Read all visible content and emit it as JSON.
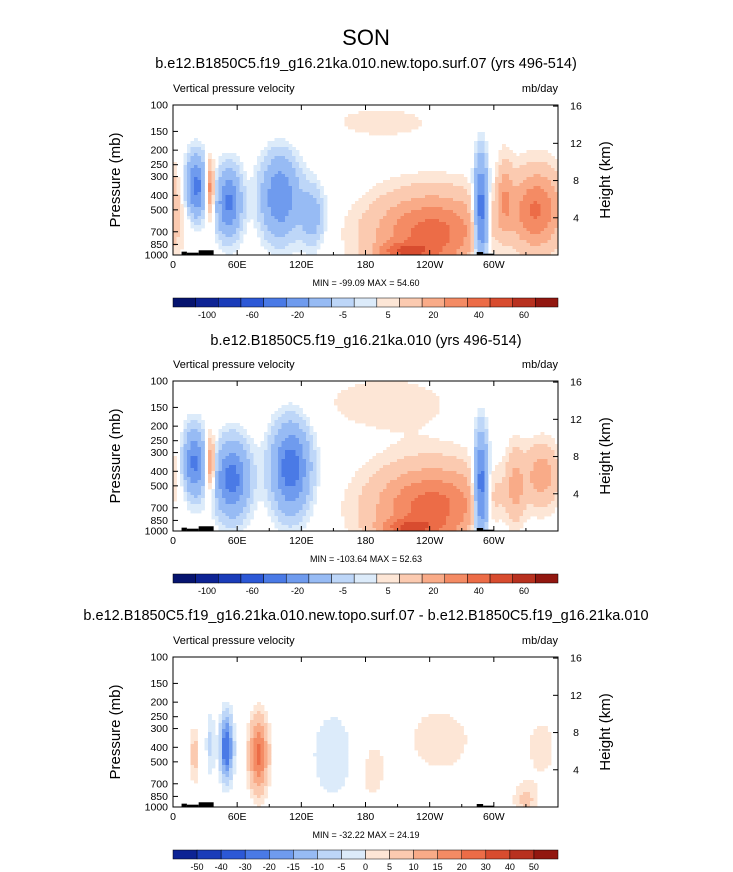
{
  "title": "SON",
  "colors": {
    "pos": [
      "#fde6d6",
      "#fbcab0",
      "#f9ab88",
      "#f48b64",
      "#ec6c47",
      "#d84c2f",
      "#b8311f",
      "#921710"
    ],
    "neg": [
      "#dcebfa",
      "#bdd6f8",
      "#97bbf4",
      "#6f9bee",
      "#4a7ae6",
      "#2c58d6",
      "#1a3cb9",
      "#0d2394",
      "#06146f"
    ],
    "land": "#000000"
  },
  "chart_data": [
    {
      "type": "heatmap",
      "id": "p1",
      "title": "b.e12.B1850C5.f19_g16.21ka.010.new.topo.surf.07 (yrs 496-514)",
      "left_label": "Vertical pressure velocity",
      "right_label": "mb/day",
      "ylabel": "Pressure (mb)",
      "ylabel_right": "Height (km)",
      "yticks": [
        "100",
        "150",
        "200",
        "250",
        "300",
        "400",
        "500",
        "700",
        "850",
        "1000"
      ],
      "yticks_right": [
        "16",
        "12",
        "8",
        "4"
      ],
      "xticks": [
        "0",
        "60E",
        "120E",
        "180",
        "120W",
        "60W"
      ],
      "minmax": "MIN = -99.09  MAX =  54.60",
      "colorbar": [
        "-100",
        "-60",
        "-20",
        "-5",
        "5",
        "20",
        "40",
        "60"
      ],
      "xlim": [
        0,
        360
      ],
      "features": [
        {
          "lon": 22,
          "plev": 350,
          "sx": 7,
          "sy": 0.32,
          "v": -70
        },
        {
          "lon": 52,
          "plev": 450,
          "sx": 8,
          "sy": 0.35,
          "v": -65
        },
        {
          "lon": 100,
          "plev": 410,
          "sx": 12,
          "sy": 0.42,
          "v": -60
        },
        {
          "lon": 130,
          "plev": 550,
          "sx": 8,
          "sy": 0.32,
          "v": -30
        },
        {
          "lon": 242,
          "plev": 720,
          "sx": 40,
          "sy": 0.45,
          "v": 45
        },
        {
          "lon": 215,
          "plev": 950,
          "sx": 18,
          "sy": 0.09,
          "v": 25
        },
        {
          "lon": 288,
          "plev": 520,
          "sx": 4.5,
          "sy": 0.55,
          "v": -85
        },
        {
          "lon": 34,
          "plev": 360,
          "sx": 3.5,
          "sy": 0.3,
          "v": 50
        },
        {
          "lon": 340,
          "plev": 500,
          "sx": 18,
          "sy": 0.45,
          "v": 40
        },
        {
          "lon": 310,
          "plev": 380,
          "sx": 5,
          "sy": 0.4,
          "v": 18
        },
        {
          "lon": 195,
          "plev": 130,
          "sx": 60,
          "sy": 0.3,
          "v": 6
        },
        {
          "lon": 300,
          "plev": 900,
          "sx": 20,
          "sy": 0.25,
          "v": -8
        }
      ],
      "land": [
        {
          "lon": [
            8,
            13
          ],
          "plev": 950
        },
        {
          "lon": [
            13,
            24
          ],
          "plev": 965
        },
        {
          "lon": [
            24,
            38
          ],
          "plev": 930
        },
        {
          "lon": [
            284,
            290
          ],
          "plev": 955
        },
        {
          "lon": [
            290,
            300
          ],
          "plev": 980
        }
      ]
    },
    {
      "type": "heatmap",
      "id": "p2",
      "title": "b.e12.B1850C5.f19_g16.21ka.010 (yrs 496-514)",
      "left_label": "Vertical pressure velocity",
      "right_label": "mb/day",
      "ylabel": "Pressure (mb)",
      "ylabel_right": "Height (km)",
      "yticks": [
        "100",
        "150",
        "200",
        "250",
        "300",
        "400",
        "500",
        "700",
        "850",
        "1000"
      ],
      "yticks_right": [
        "16",
        "12",
        "8",
        "4"
      ],
      "xticks": [
        "0",
        "60E",
        "120E",
        "180",
        "120W",
        "60W"
      ],
      "minmax": "MIN = -103.64  MAX =  52.63",
      "colorbar": [
        "-100",
        "-60",
        "-20",
        "-5",
        "5",
        "20",
        "40",
        "60"
      ],
      "xlim": [
        0,
        360
      ],
      "features": [
        {
          "lon": 20,
          "plev": 350,
          "sx": 7,
          "sy": 0.34,
          "v": -65
        },
        {
          "lon": 55,
          "plev": 450,
          "sx": 11,
          "sy": 0.38,
          "v": -70
        },
        {
          "lon": 110,
          "plev": 380,
          "sx": 12,
          "sy": 0.45,
          "v": -75
        },
        {
          "lon": 242,
          "plev": 700,
          "sx": 40,
          "sy": 0.47,
          "v": 45
        },
        {
          "lon": 220,
          "plev": 950,
          "sx": 18,
          "sy": 0.09,
          "v": 25
        },
        {
          "lon": 288,
          "plev": 520,
          "sx": 4.5,
          "sy": 0.55,
          "v": -85
        },
        {
          "lon": 35,
          "plev": 360,
          "sx": 3.5,
          "sy": 0.3,
          "v": 45
        },
        {
          "lon": 345,
          "plev": 420,
          "sx": 12,
          "sy": 0.35,
          "v": 25
        },
        {
          "lon": 320,
          "plev": 500,
          "sx": 6,
          "sy": 0.45,
          "v": 18
        },
        {
          "lon": 200,
          "plev": 140,
          "sx": 50,
          "sy": 0.35,
          "v": 8
        },
        {
          "lon": 300,
          "plev": 920,
          "sx": 20,
          "sy": 0.25,
          "v": -8
        }
      ],
      "land": [
        {
          "lon": [
            8,
            13
          ],
          "plev": 950
        },
        {
          "lon": [
            13,
            24
          ],
          "plev": 965
        },
        {
          "lon": [
            24,
            38
          ],
          "plev": 930
        },
        {
          "lon": [
            284,
            290
          ],
          "plev": 955
        },
        {
          "lon": [
            290,
            300
          ],
          "plev": 980
        }
      ]
    },
    {
      "type": "heatmap",
      "id": "p3",
      "title": "b.e12.B1850C5.f19_g16.21ka.010.new.topo.surf.07 - b.e12.B1850C5.f19_g16.21ka.010",
      "left_label": "Vertical pressure velocity",
      "right_label": "mb/day",
      "ylabel": "Pressure (mb)",
      "ylabel_right": "Height (km)",
      "yticks": [
        "100",
        "150",
        "200",
        "250",
        "300",
        "400",
        "500",
        "700",
        "850",
        "1000"
      ],
      "yticks_right": [
        "16",
        "12",
        "8",
        "4"
      ],
      "xticks": [
        "0",
        "60E",
        "120E",
        "180",
        "120W",
        "60W"
      ],
      "minmax": "MIN = -32.22  MAX =  24.19",
      "colorbar": [
        "-50",
        "-40",
        "-30",
        "-20",
        "-15",
        "-10",
        "-5",
        "0",
        "5",
        "10",
        "15",
        "20",
        "30",
        "40",
        "50"
      ],
      "xlim": [
        0,
        360
      ],
      "features": [
        {
          "lon": 50,
          "plev": 400,
          "sx": 4,
          "sy": 0.32,
          "v": -28
        },
        {
          "lon": 80,
          "plev": 450,
          "sx": 6,
          "sy": 0.38,
          "v": 22
        },
        {
          "lon": 150,
          "plev": 450,
          "sx": 15,
          "sy": 0.5,
          "v": -5
        },
        {
          "lon": 250,
          "plev": 350,
          "sx": 40,
          "sy": 0.7,
          "v": 3
        },
        {
          "lon": 185,
          "plev": 600,
          "sx": 10,
          "sy": 0.4,
          "v": 3
        },
        {
          "lon": 20,
          "plev": 450,
          "sx": 3,
          "sy": 0.3,
          "v": 7
        },
        {
          "lon": 35,
          "plev": 380,
          "sx": 3,
          "sy": 0.35,
          "v": -6
        },
        {
          "lon": 290,
          "plev": 350,
          "sx": 4,
          "sy": 0.4,
          "v": -4
        },
        {
          "lon": 330,
          "plev": 900,
          "sx": 8,
          "sy": 0.2,
          "v": 6
        },
        {
          "lon": 315,
          "plev": 150,
          "sx": 30,
          "sy": 0.3,
          "v": -2
        },
        {
          "lon": 345,
          "plev": 400,
          "sx": 10,
          "sy": 0.35,
          "v": 4
        }
      ],
      "land": [
        {
          "lon": [
            8,
            13
          ],
          "plev": 950
        },
        {
          "lon": [
            13,
            24
          ],
          "plev": 965
        },
        {
          "lon": [
            24,
            38
          ],
          "plev": 930
        },
        {
          "lon": [
            284,
            290
          ],
          "plev": 955
        },
        {
          "lon": [
            290,
            300
          ],
          "plev": 980
        }
      ]
    }
  ]
}
